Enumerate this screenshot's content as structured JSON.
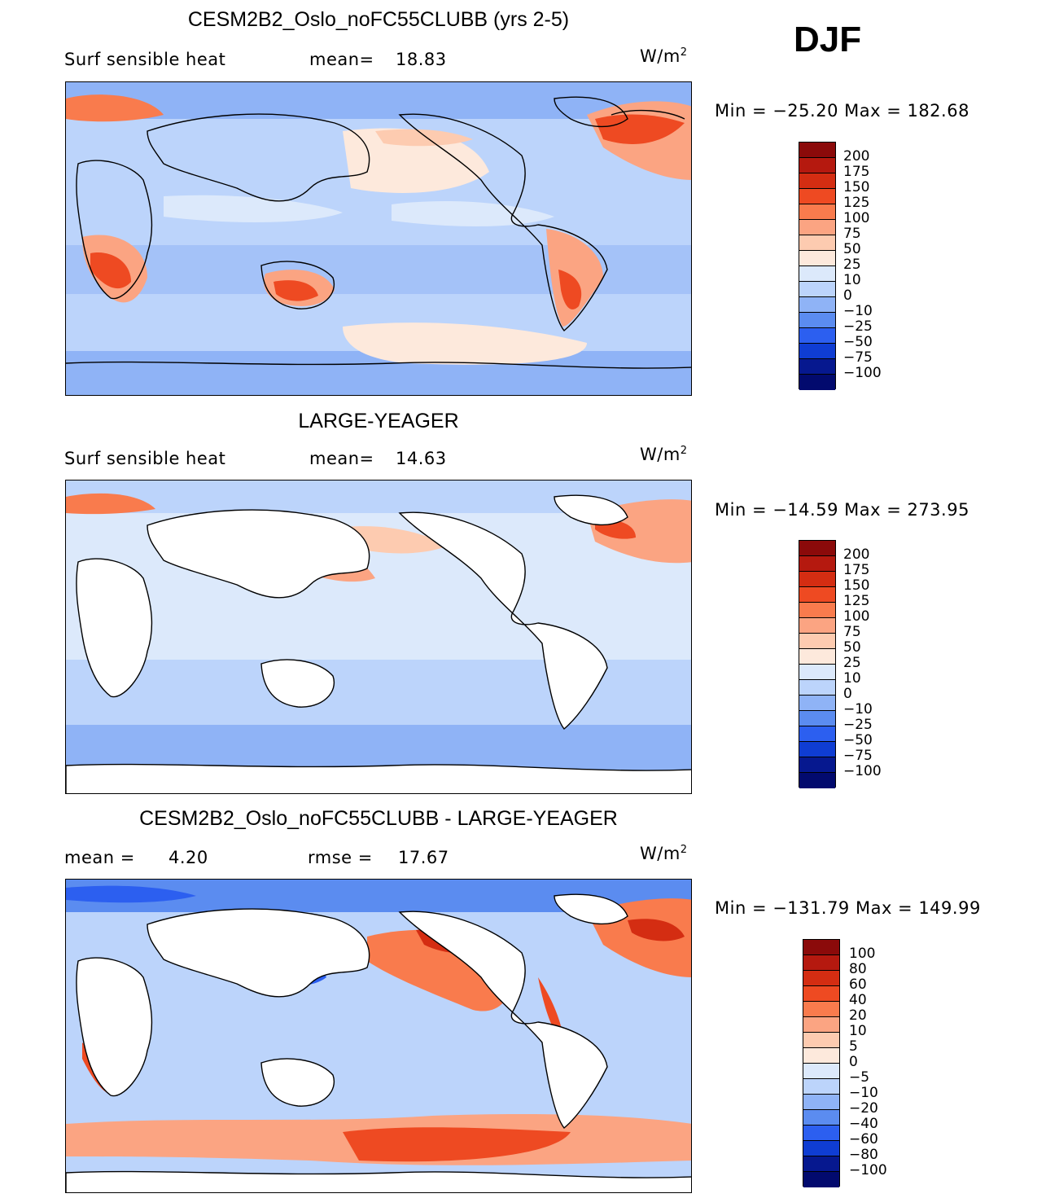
{
  "season": "DJF",
  "units_base": "W/m",
  "units_sup": "2",
  "panels": [
    {
      "title": "CESM2B2_Oslo_noFC55CLUBB (yrs 2-5)",
      "left_label": "Surf  sensible  heat",
      "stat_label": "mean=",
      "stat_value": "18.83",
      "minmax": "Min  =  −25.20  Max  =  182.68"
    },
    {
      "title": "LARGE-YEAGER",
      "left_label": "Surf  sensible  heat",
      "stat_label": "mean=",
      "stat_value": "14.63",
      "minmax": "Min  =  −14.59  Max  =  273.95"
    },
    {
      "title": "CESM2B2_Oslo_noFC55CLUBB - LARGE-YEAGER",
      "left_label": "mean  =",
      "left_value": "4.20",
      "stat_label": "rmse  =",
      "stat_value": "17.67",
      "minmax": "Min  =  −131.79  Max  =  149.99"
    }
  ],
  "colorbar_abs": {
    "labels": [
      "200",
      "175",
      "150",
      "125",
      "100",
      "75",
      "50",
      "25",
      "10",
      "0",
      "−10",
      "−25",
      "−50",
      "−75",
      "−100"
    ],
    "colors": [
      "#8b0a0a",
      "#b5190f",
      "#d42d12",
      "#ee4a22",
      "#f97b4d",
      "#fba482",
      "#fdcbb0",
      "#fde9dc",
      "#dce9fb",
      "#bcd4fb",
      "#8fb3f6",
      "#5b8cf0",
      "#2c5ff0",
      "#0f3dd3",
      "#06188f",
      "#020a6e"
    ]
  },
  "colorbar_diff": {
    "labels": [
      "100",
      "80",
      "60",
      "40",
      "20",
      "10",
      "5",
      "0",
      "−5",
      "−10",
      "−20",
      "−40",
      "−60",
      "−80",
      "−100"
    ],
    "colors": [
      "#8b0a0a",
      "#b5190f",
      "#d42d12",
      "#ee4a22",
      "#f97b4d",
      "#fba482",
      "#fdcbb0",
      "#fde9dc",
      "#dce9fb",
      "#bcd4fb",
      "#8fb3f6",
      "#5b8cf0",
      "#2c5ff0",
      "#0f3dd3",
      "#06188f",
      "#020a6e"
    ]
  }
}
